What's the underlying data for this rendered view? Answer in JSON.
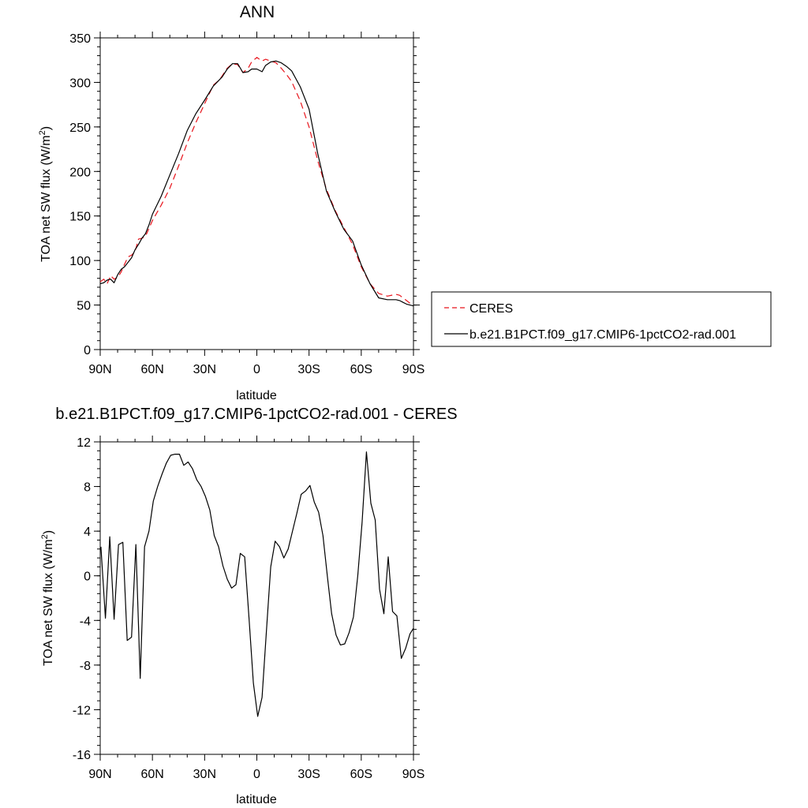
{
  "chart_data": [
    {
      "type": "line",
      "title": "ANN",
      "xlabel": "latitude",
      "ylabel_main": "TOA net SW flux (W/m",
      "ylabel_sup": "2",
      "ylabel_tail": ")",
      "xlim": [
        90,
        -90
      ],
      "ylim": [
        0,
        350
      ],
      "xticks": [
        90,
        60,
        30,
        0,
        -30,
        -60,
        -90
      ],
      "xtick_labels": [
        "90N",
        "60N",
        "30N",
        "0",
        "30S",
        "60S",
        "90S"
      ],
      "yticks": [
        0,
        50,
        100,
        150,
        200,
        250,
        300,
        350
      ],
      "ytick_labels": [
        "0",
        "50",
        "100",
        "150",
        "200",
        "250",
        "300",
        "350"
      ],
      "legend": {
        "placement": "right",
        "entries": [
          "CERES",
          "b.e21.B1PCT.f09_g17.CMIP6-1pctCO2-rad.001"
        ]
      },
      "series": [
        {
          "name": "CERES",
          "color": "#e8141c",
          "dash": true,
          "x": [
            90,
            88,
            86,
            84,
            82,
            80,
            78,
            76,
            74,
            72,
            70,
            68,
            66,
            64,
            62,
            60,
            55,
            50,
            45,
            40,
            35,
            30,
            25,
            22,
            20,
            17,
            14,
            11,
            8,
            5,
            3,
            0,
            -3,
            -5,
            -8,
            -11,
            -14,
            -17,
            -20,
            -25,
            -30,
            -35,
            -40,
            -45,
            -50,
            -55,
            -60,
            -65,
            -70,
            -75,
            -80,
            -82,
            -84,
            -86,
            -88,
            -90
          ],
          "y": [
            76,
            79,
            74,
            83,
            79,
            81,
            87,
            96,
            104,
            106,
            110,
            124,
            125,
            127,
            136,
            145,
            162,
            181,
            206,
            232,
            255,
            276,
            297,
            302,
            307,
            316,
            321,
            320,
            311,
            316,
            323,
            328,
            324,
            326,
            324,
            322,
            316,
            309,
            301,
            279,
            250,
            212,
            180,
            156,
            137,
            118,
            93,
            74,
            63,
            60,
            62,
            61,
            58,
            55,
            52,
            51
          ]
        },
        {
          "name": "b.e21.B1PCT.f09_g17.CMIP6-1pctCO2-rad.001",
          "color": "#000000",
          "dash": false,
          "x": [
            90,
            88,
            86,
            84,
            82,
            80,
            78,
            76,
            74,
            72,
            70,
            68,
            66,
            64,
            62,
            60,
            55,
            50,
            45,
            40,
            35,
            30,
            25,
            22,
            20,
            17,
            14,
            11,
            8,
            5,
            3,
            0,
            -3,
            -5,
            -8,
            -11,
            -14,
            -17,
            -20,
            -25,
            -30,
            -35,
            -40,
            -45,
            -50,
            -55,
            -60,
            -65,
            -70,
            -75,
            -80,
            -82,
            -84,
            -86,
            -88,
            -90
          ],
          "y": [
            74,
            75,
            78,
            79,
            75,
            84,
            90,
            93,
            98,
            103,
            112,
            118,
            125,
            130,
            140,
            152,
            172,
            196,
            220,
            246,
            265,
            280,
            296,
            302,
            306,
            315,
            321,
            321,
            311,
            312,
            315,
            315,
            312,
            319,
            323,
            324,
            322,
            318,
            313,
            295,
            270,
            220,
            178,
            155,
            135,
            122,
            95,
            74,
            58,
            56,
            56,
            55,
            53,
            51,
            50,
            49
          ]
        }
      ]
    },
    {
      "type": "line",
      "title": "b.e21.B1PCT.f09_g17.CMIP6-1pctCO2-rad.001 - CERES",
      "xlabel": "latitude",
      "ylabel_main": "TOA net SW flux (W/m",
      "ylabel_sup": "2",
      "ylabel_tail": ")",
      "xlim": [
        90,
        -90
      ],
      "ylim": [
        -16,
        12
      ],
      "xticks": [
        90,
        60,
        30,
        0,
        -30,
        -60,
        -90
      ],
      "xtick_labels": [
        "90N",
        "60N",
        "30N",
        "0",
        "30S",
        "60S",
        "90S"
      ],
      "yticks": [
        -16,
        -12,
        -8,
        -4,
        0,
        4,
        8,
        12
      ],
      "ytick_labels": [
        "-16",
        "-12",
        "-8",
        "-4",
        "0",
        "4",
        "8",
        "12"
      ],
      "series": [
        {
          "name": "b.e21.B1PCT.f09_g17.CMIP6-1pctCO2-rad.001 - CERES",
          "color": "#000000",
          "dash": false,
          "x": [
            89.6,
            87.0,
            84.5,
            82.0,
            79.5,
            77.0,
            74.5,
            72.0,
            69.5,
            67.0,
            64.5,
            62.0,
            59.5,
            57.0,
            54.5,
            52.0,
            49.5,
            47.0,
            44.5,
            42.0,
            39.5,
            37.0,
            34.5,
            32.0,
            29.5,
            27.0,
            24.5,
            22.0,
            19.5,
            17.0,
            14.5,
            12.0,
            9.5,
            7.0,
            4.5,
            2.0,
            -0.5,
            -3.0,
            -5.5,
            -8.0,
            -10.5,
            -13.0,
            -15.5,
            -18.0,
            -20.5,
            -23.0,
            -25.5,
            -28.0,
            -30.5,
            -33.0,
            -35.5,
            -38.0,
            -40.5,
            -43.0,
            -45.5,
            -48.0,
            -50.5,
            -53.0,
            -55.5,
            -58.0,
            -60.5,
            -63.0,
            -65.5,
            -68.0,
            -70.5,
            -73.0,
            -75.5,
            -78.0,
            -80.5,
            -83.0,
            -85.5,
            -88.0,
            -90.0
          ],
          "y": [
            2.6,
            -3.8,
            3.5,
            -3.9,
            2.8,
            3.0,
            -5.8,
            -5.5,
            2.8,
            -9.2,
            2.6,
            4.0,
            6.7,
            8.0,
            9.1,
            10.1,
            10.8,
            10.9,
            10.9,
            9.9,
            10.2,
            9.6,
            8.6,
            8.0,
            7.1,
            5.9,
            3.6,
            2.6,
            0.9,
            -0.3,
            -1.1,
            -0.8,
            2.0,
            1.7,
            -3.8,
            -9.6,
            -12.6,
            -10.9,
            -5.0,
            0.8,
            3.1,
            2.6,
            1.6,
            2.4,
            4.0,
            5.6,
            7.3,
            7.6,
            8.1,
            6.6,
            5.7,
            3.6,
            0.0,
            -3.4,
            -5.3,
            -6.2,
            -6.1,
            -5.1,
            -3.7,
            0.0,
            4.8,
            11.1,
            6.5,
            5.0,
            -1.2,
            -3.4,
            1.7,
            -3.2,
            -3.6,
            -7.4,
            -6.5,
            -5.2,
            -4.7
          ]
        }
      ]
    }
  ]
}
